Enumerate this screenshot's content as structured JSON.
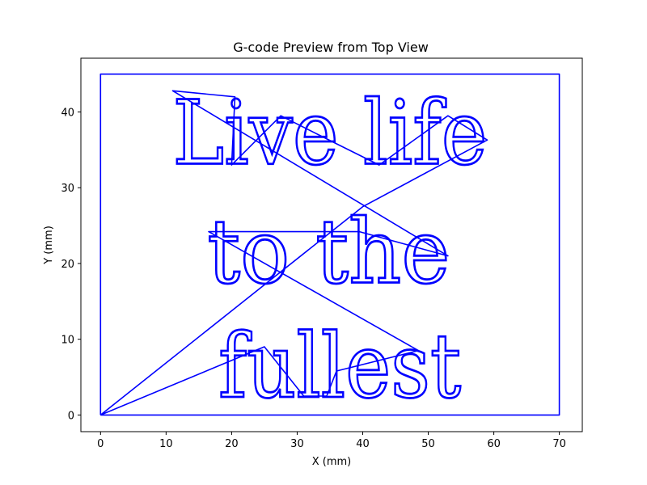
{
  "chart_data": {
    "type": "line",
    "title": "G-code Preview from Top View",
    "xlabel": "X (mm)",
    "ylabel": "Y (mm)",
    "xlim": [
      -3,
      73.5
    ],
    "ylim": [
      -2.2,
      47.1
    ],
    "xticks": [
      0,
      10,
      20,
      30,
      40,
      50,
      60,
      70
    ],
    "yticks": [
      0,
      10,
      20,
      30,
      40
    ],
    "line_color": "#0000ff",
    "grid": false,
    "series": [
      {
        "values": [
          {
            "x": 0,
            "y": 0
          },
          {
            "x": 70,
            "y": 0
          },
          {
            "x": 70,
            "y": 45
          },
          {
            "x": 0,
            "y": 45
          },
          {
            "x": 0,
            "y": 0
          }
        ]
      },
      {
        "values": [
          {
            "x": 0,
            "y": 0
          },
          {
            "x": 40,
            "y": 27.5
          },
          {
            "x": 59,
            "y": 36.3
          },
          {
            "x": 53,
            "y": 39.5
          },
          {
            "x": 42.5,
            "y": 33
          },
          {
            "x": 36,
            "y": 35.8
          },
          {
            "x": 27.5,
            "y": 39.5
          },
          {
            "x": 20,
            "y": 33
          },
          {
            "x": 20.5,
            "y": 42
          },
          {
            "x": 11,
            "y": 42.8
          },
          {
            "x": 53,
            "y": 21
          },
          {
            "x": 39.5,
            "y": 24.2
          },
          {
            "x": 16.5,
            "y": 24.2
          },
          {
            "x": 48.5,
            "y": 8.5
          },
          {
            "x": 36,
            "y": 5.8
          },
          {
            "x": 34.5,
            "y": 2.5
          },
          {
            "x": 31,
            "y": 2.5
          },
          {
            "x": 25,
            "y": 9
          },
          {
            "x": 0,
            "y": 0
          }
        ]
      }
    ],
    "text_lines": [
      "Live life",
      "to the",
      "fullest"
    ]
  }
}
